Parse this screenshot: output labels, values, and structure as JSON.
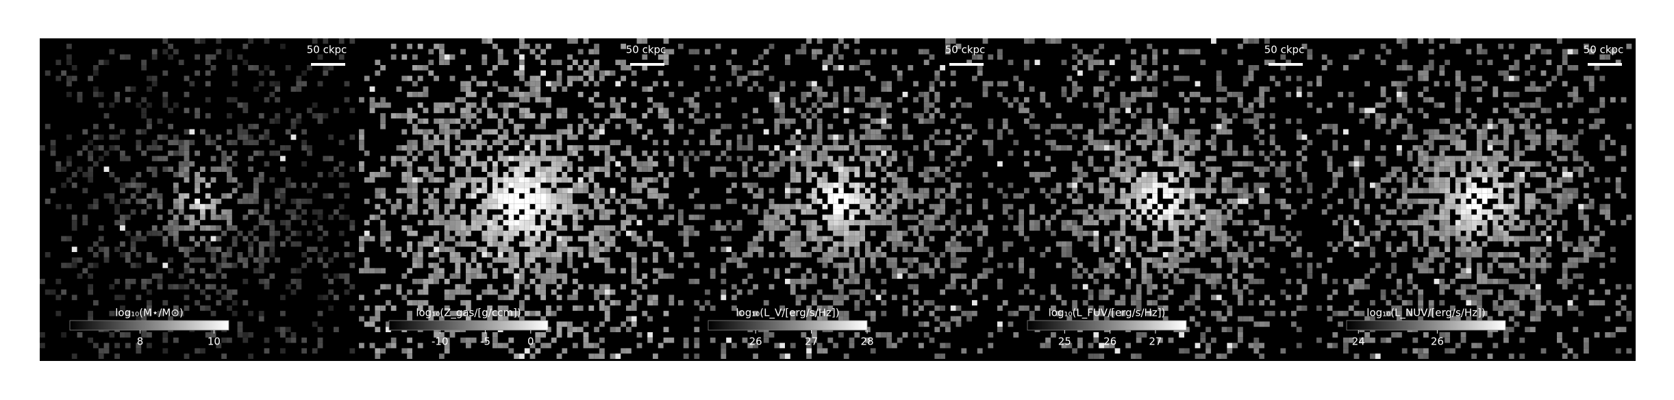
{
  "chart_data": [
    {
      "type": "image",
      "scale_label": "50 ckpc",
      "colorbar_label": "log₁₀(M⋆/M⊙)",
      "clim": [
        6.1,
        10.4
      ],
      "cticks": [
        8,
        10
      ]
    },
    {
      "type": "image",
      "scale_label": "50 ckpc",
      "colorbar_label": "log₁₀(Z_gas/[g/ccm])",
      "clim": [
        -15.6,
        1.9
      ],
      "cticks": [
        -10,
        -5,
        0
      ]
    },
    {
      "type": "image",
      "scale_label": "50 ckpc",
      "colorbar_label": "log₁₀(L_V/[erg/s/Hz])",
      "clim": [
        25.15,
        28.0
      ],
      "cticks": [
        26,
        27,
        28
      ]
    },
    {
      "type": "image",
      "scale_label": "50 ckpc",
      "colorbar_label": "log₁₀(L_FUV/[erg/s/Hz])",
      "clim": [
        24.18,
        27.68
      ],
      "cticks": [
        25,
        26,
        27
      ]
    },
    {
      "type": "image",
      "scale_label": "50 ckpc",
      "colorbar_label": "log₁₀(L_NUV/[erg/s/Hz])",
      "clim": [
        23.7,
        27.73
      ],
      "cticks": [
        24,
        26
      ]
    }
  ]
}
